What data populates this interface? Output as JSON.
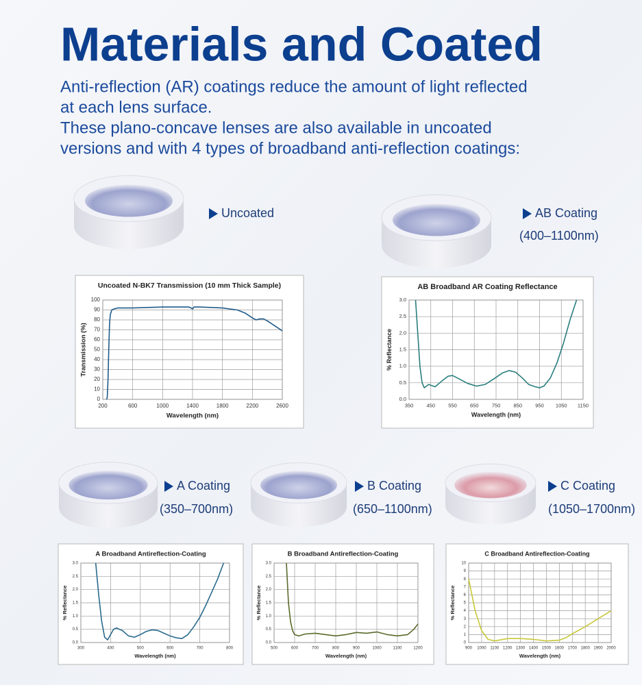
{
  "header": {
    "title": "Materials and Coated",
    "lines": [
      "Anti-reflection (AR) coatings reduce the amount of light reflected",
      "at each lens surface.",
      "These plano-concave lenses are also available in uncoated",
      "versions and with 4 types of broadband anti-reflection coatings:"
    ]
  },
  "lenses": [
    {
      "label": "Uncoated"
    },
    {
      "label": "AB Coating",
      "range": "(400–1100nm)"
    },
    {
      "label": "A Coating",
      "range": "(350–700nm)"
    },
    {
      "label": "B Coating",
      "range": "(650–1100nm)"
    },
    {
      "label": "C Coating",
      "range": "(1050–1700nm)"
    }
  ],
  "chart_data": [
    {
      "type": "line",
      "title": "Uncoated N-BK7 Transmission (10 mm Thick Sample)",
      "x_label": "Wavelength (nm)",
      "y_label": "Transmission (%)",
      "color": "#1f5b8a",
      "grid": true,
      "x": [
        250,
        260,
        270,
        280,
        290,
        300,
        320,
        350,
        400,
        600,
        1000,
        1350,
        1380,
        1400,
        1420,
        1500,
        1800,
        2000,
        2100,
        2200,
        2250,
        2300,
        2350,
        2400,
        2500,
        2600
      ],
      "values": [
        0,
        2,
        20,
        50,
        75,
        85,
        90,
        91,
        92,
        92,
        93,
        93,
        92,
        91,
        93,
        93,
        92,
        90,
        87,
        82,
        80,
        81,
        81,
        79,
        74,
        69
      ],
      "xlim": [
        200,
        2600
      ],
      "xticks": [
        200,
        600,
        1000,
        1400,
        1800,
        2200,
        2600
      ],
      "ylim": [
        0,
        100
      ],
      "yticks": [
        0,
        10,
        20,
        30,
        40,
        50,
        60,
        70,
        80,
        90,
        100
      ]
    },
    {
      "type": "line",
      "title": "AB Broadband AR Coating Reflectance",
      "x_label": "Wavelength (nm)",
      "y_label": "% Reflectance",
      "color": "#2a7d7d",
      "grid": true,
      "x": [
        380,
        390,
        400,
        410,
        420,
        440,
        470,
        500,
        530,
        550,
        580,
        620,
        660,
        700,
        740,
        780,
        810,
        840,
        870,
        900,
        930,
        950,
        970,
        1000,
        1030,
        1060,
        1090,
        1120
      ],
      "values": [
        3.0,
        2.0,
        1.0,
        0.5,
        0.35,
        0.45,
        0.38,
        0.55,
        0.7,
        0.72,
        0.62,
        0.48,
        0.4,
        0.45,
        0.62,
        0.8,
        0.87,
        0.82,
        0.65,
        0.45,
        0.38,
        0.35,
        0.4,
        0.65,
        1.1,
        1.7,
        2.4,
        3.0
      ],
      "xlim": [
        350,
        1150
      ],
      "xticks": [
        350,
        450,
        550,
        650,
        750,
        850,
        950,
        1050,
        1150
      ],
      "ylim": [
        0,
        3
      ],
      "yticks": [
        {
          "value": 0,
          "label": "0.0"
        },
        0.5,
        {
          "value": 1,
          "label": "1.0"
        },
        1.5,
        {
          "value": 2,
          "label": "2.0"
        },
        2.5,
        {
          "value": 3,
          "label": "3.0"
        }
      ]
    },
    {
      "type": "line",
      "title": "A Broadband Antireflection-Coating",
      "x_label": "Wavelength (nm)",
      "y_label": "% Reflectance",
      "color": "#2a6a8e",
      "grid": true,
      "x": [
        350,
        360,
        370,
        380,
        390,
        400,
        410,
        420,
        440,
        460,
        480,
        500,
        520,
        540,
        560,
        580,
        600,
        620,
        640,
        660,
        680,
        700,
        720,
        740,
        760,
        780
      ],
      "values": [
        3.0,
        1.8,
        0.8,
        0.2,
        0.1,
        0.3,
        0.5,
        0.55,
        0.45,
        0.25,
        0.2,
        0.3,
        0.42,
        0.48,
        0.45,
        0.35,
        0.25,
        0.18,
        0.15,
        0.3,
        0.6,
        0.95,
        1.4,
        1.9,
        2.4,
        3.0
      ],
      "xlim": [
        300,
        800
      ],
      "xticks": [
        300,
        400,
        500,
        600,
        700,
        800
      ],
      "ylim": [
        0,
        3
      ],
      "yticks": [
        {
          "value": 0,
          "label": "0.0"
        },
        0.5,
        {
          "value": 1,
          "label": "1.0"
        },
        1.5,
        {
          "value": 2,
          "label": "2.0"
        },
        2.5,
        {
          "value": 3,
          "label": "3.0"
        }
      ]
    },
    {
      "type": "line",
      "title": "B Broadband Antireflection-Coating",
      "x_label": "Wavelength (nm)",
      "y_label": "% Reflectance",
      "color": "#5a6a2a",
      "grid": true,
      "x": [
        560,
        570,
        580,
        590,
        600,
        620,
        650,
        700,
        750,
        800,
        850,
        900,
        950,
        1000,
        1050,
        1100,
        1150,
        1180,
        1200
      ],
      "values": [
        3.0,
        1.5,
        0.8,
        0.45,
        0.3,
        0.25,
        0.32,
        0.35,
        0.3,
        0.25,
        0.3,
        0.38,
        0.35,
        0.4,
        0.3,
        0.25,
        0.3,
        0.5,
        0.7
      ],
      "xlim": [
        500,
        1200
      ],
      "xticks": [
        500,
        600,
        700,
        800,
        900,
        1000,
        1100,
        1200
      ],
      "ylim": [
        0,
        3
      ],
      "yticks": [
        {
          "value": 0,
          "label": "0.0"
        },
        0.5,
        {
          "value": 1,
          "label": "1.0"
        },
        1.5,
        {
          "value": 2,
          "label": "2.0"
        },
        2.5,
        {
          "value": 3,
          "label": "3.0"
        }
      ]
    },
    {
      "type": "line",
      "title": "C Broadband Antireflection-Coating",
      "x_label": "Wavelength (nm)",
      "y_label": "% Reflectance",
      "color": "#c8c83a",
      "grid": true,
      "x": [
        900,
        950,
        1000,
        1050,
        1100,
        1200,
        1300,
        1400,
        1500,
        1600,
        1650,
        1700,
        1800,
        1900,
        2000
      ],
      "values": [
        8,
        4,
        1.5,
        0.4,
        0.2,
        0.5,
        0.5,
        0.4,
        0.2,
        0.3,
        0.6,
        1.1,
        2.0,
        3.0,
        4.0
      ],
      "xlim": [
        900,
        2000
      ],
      "xticks": [
        900,
        1000,
        1100,
        1200,
        1300,
        1400,
        1500,
        1600,
        1700,
        1800,
        1900,
        2000
      ],
      "ylim": [
        0,
        10
      ],
      "yticks": [
        0,
        1,
        2,
        3,
        4,
        5,
        6,
        7,
        8,
        9,
        10
      ]
    }
  ]
}
